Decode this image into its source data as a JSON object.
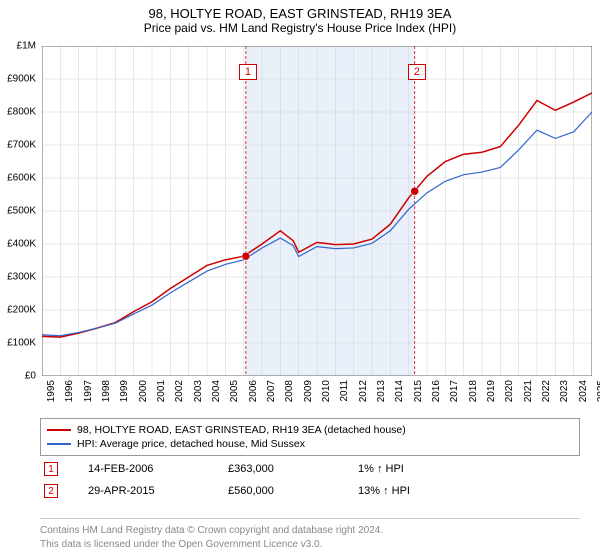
{
  "title": "98, HOLTYE ROAD, EAST GRINSTEAD, RH19 3EA",
  "subtitle": "Price paid vs. HM Land Registry's House Price Index (HPI)",
  "chart": {
    "type": "line",
    "background_color": "#ffffff",
    "grid_color": "#d0d0d0",
    "shaded_band_color": "#eaf0fa",
    "ylim": [
      0,
      1000000
    ],
    "ytick_step": 100000,
    "ytick_labels": [
      "£0",
      "£100K",
      "£200K",
      "£300K",
      "£400K",
      "£500K",
      "£600K",
      "£700K",
      "£800K",
      "£900K",
      "£1M"
    ],
    "x_years": [
      1995,
      1996,
      1997,
      1998,
      1999,
      2000,
      2001,
      2002,
      2003,
      2004,
      2005,
      2006,
      2007,
      2008,
      2009,
      2010,
      2011,
      2012,
      2013,
      2014,
      2015,
      2016,
      2017,
      2018,
      2019,
      2020,
      2021,
      2022,
      2023,
      2024,
      2025
    ],
    "shaded_band": {
      "start_year": 2006.12,
      "end_year": 2015.33
    },
    "series": [
      {
        "name": "98, HOLTYE ROAD, EAST GRINSTEAD, RH19 3EA (detached house)",
        "color": "#cc0000",
        "line_width": 1.5,
        "points": [
          [
            1995,
            120000
          ],
          [
            1996,
            118000
          ],
          [
            1997,
            130000
          ],
          [
            1998,
            145000
          ],
          [
            1999,
            162000
          ],
          [
            2000,
            195000
          ],
          [
            2001,
            225000
          ],
          [
            2002,
            265000
          ],
          [
            2003,
            300000
          ],
          [
            2004,
            335000
          ],
          [
            2005,
            352000
          ],
          [
            2006,
            363000
          ],
          [
            2007,
            400000
          ],
          [
            2008,
            440000
          ],
          [
            2008.7,
            410000
          ],
          [
            2009,
            375000
          ],
          [
            2010,
            405000
          ],
          [
            2011,
            398000
          ],
          [
            2012,
            400000
          ],
          [
            2013,
            415000
          ],
          [
            2014,
            460000
          ],
          [
            2015,
            540000
          ],
          [
            2016,
            605000
          ],
          [
            2017,
            650000
          ],
          [
            2018,
            672000
          ],
          [
            2019,
            678000
          ],
          [
            2020,
            695000
          ],
          [
            2021,
            760000
          ],
          [
            2022,
            835000
          ],
          [
            2023,
            805000
          ],
          [
            2024,
            830000
          ],
          [
            2025,
            858000
          ]
        ]
      },
      {
        "name": "HPI: Average price, detached house, Mid Sussex",
        "color": "#3366cc",
        "line_width": 1.2,
        "points": [
          [
            1995,
            125000
          ],
          [
            1996,
            122000
          ],
          [
            1997,
            132000
          ],
          [
            1998,
            145000
          ],
          [
            1999,
            160000
          ],
          [
            2000,
            188000
          ],
          [
            2001,
            215000
          ],
          [
            2002,
            252000
          ],
          [
            2003,
            285000
          ],
          [
            2004,
            318000
          ],
          [
            2005,
            338000
          ],
          [
            2006,
            352000
          ],
          [
            2007,
            388000
          ],
          [
            2008,
            418000
          ],
          [
            2008.7,
            395000
          ],
          [
            2009,
            362000
          ],
          [
            2010,
            392000
          ],
          [
            2011,
            386000
          ],
          [
            2012,
            388000
          ],
          [
            2013,
            402000
          ],
          [
            2014,
            440000
          ],
          [
            2015,
            505000
          ],
          [
            2016,
            555000
          ],
          [
            2017,
            590000
          ],
          [
            2018,
            610000
          ],
          [
            2019,
            618000
          ],
          [
            2020,
            632000
          ],
          [
            2021,
            685000
          ],
          [
            2022,
            745000
          ],
          [
            2023,
            720000
          ],
          [
            2024,
            740000
          ],
          [
            2025,
            800000
          ]
        ]
      }
    ],
    "sale_markers": [
      {
        "label": "1",
        "year": 2006.12,
        "price": 363000,
        "color": "#cc0000"
      },
      {
        "label": "2",
        "year": 2015.33,
        "price": 560000,
        "color": "#cc0000"
      }
    ]
  },
  "legend": {
    "items": [
      {
        "color": "#cc0000",
        "text": "98, HOLTYE ROAD, EAST GRINSTEAD, RH19 3EA (detached house)"
      },
      {
        "color": "#3366cc",
        "text": "HPI: Average price, detached house, Mid Sussex"
      }
    ]
  },
  "sales": [
    {
      "marker": "1",
      "date": "14-FEB-2006",
      "price": "£363,000",
      "hpi": "1% ↑ HPI"
    },
    {
      "marker": "2",
      "date": "29-APR-2015",
      "price": "£560,000",
      "hpi": "13% ↑ HPI"
    }
  ],
  "footer": {
    "line1": "Contains HM Land Registry data © Crown copyright and database right 2024.",
    "line2": "This data is licensed under the Open Government Licence v3.0."
  }
}
